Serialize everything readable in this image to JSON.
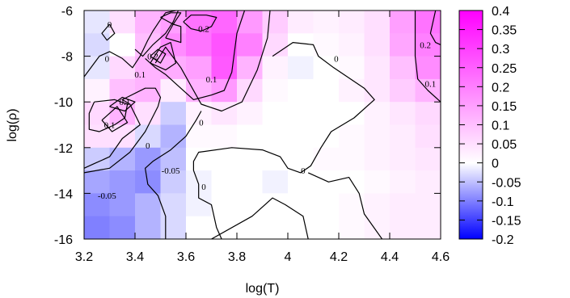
{
  "chart_data": {
    "type": "heatmap",
    "title": "",
    "xlabel": "log(T)",
    "ylabel": "log(ρ)",
    "xlim": [
      3.2,
      4.6
    ],
    "ylim": [
      -16,
      -6
    ],
    "x_ticks": [
      "3.2",
      "3.4",
      "3.6",
      "3.8",
      "4",
      "4.2",
      "4.4",
      "4.6"
    ],
    "y_ticks": [
      "-16",
      "-14",
      "-12",
      "-10",
      "-8",
      "-6"
    ],
    "grid": false,
    "colorbar": {
      "range": [
        -0.2,
        0.4
      ],
      "ticks": [
        "0.4",
        "0.35",
        "0.3",
        "0.25",
        "0.2",
        "0.15",
        "0.1",
        "0.05",
        "0",
        "-0.05",
        "-0.1",
        "-0.15",
        "-0.2"
      ],
      "colors": {
        "low": "#0000ff",
        "mid": "#ffffff",
        "high": "#ff00ff"
      }
    },
    "x": [
      3.25,
      3.35,
      3.45,
      3.55,
      3.65,
      3.75,
      3.85,
      3.95,
      4.05,
      4.15,
      4.25,
      4.35,
      4.45,
      4.55
    ],
    "y": [
      -6.5,
      -7.5,
      -8.5,
      -9.5,
      -10.5,
      -11.5,
      -12.5,
      -13.5,
      -14.5,
      -15.5
    ],
    "z": [
      [
        -0.02,
        0.05,
        0.12,
        0.15,
        0.22,
        0.24,
        0.16,
        0.08,
        0.03,
        0.02,
        0.03,
        0.05,
        0.15,
        0.22
      ],
      [
        -0.03,
        0.0,
        0.1,
        0.18,
        0.22,
        0.27,
        0.2,
        0.06,
        0.0,
        0.01,
        0.02,
        0.05,
        0.14,
        0.2
      ],
      [
        -0.02,
        0.06,
        0.12,
        0.13,
        0.15,
        0.26,
        0.12,
        0.02,
        -0.01,
        0.0,
        0.01,
        0.04,
        0.1,
        0.18
      ],
      [
        0.02,
        0.1,
        0.12,
        0.03,
        0.12,
        0.16,
        0.06,
        0.01,
        0.0,
        0.0,
        0.02,
        0.04,
        0.08,
        0.12
      ],
      [
        0.06,
        0.12,
        0.05,
        -0.04,
        0.02,
        0.04,
        0.02,
        0.0,
        0.0,
        0.0,
        0.0,
        0.02,
        0.04,
        0.06
      ],
      [
        0.05,
        0.05,
        -0.03,
        -0.06,
        0.01,
        0.01,
        0.0,
        0.0,
        0.0,
        0.0,
        0.01,
        0.02,
        0.03,
        0.05
      ],
      [
        -0.04,
        -0.06,
        -0.08,
        -0.05,
        0.0,
        0.0,
        0.0,
        0.0,
        0.0,
        0.01,
        0.01,
        0.02,
        0.03,
        0.04
      ],
      [
        -0.07,
        -0.08,
        -0.09,
        -0.04,
        -0.01,
        0.0,
        0.0,
        -0.01,
        0.0,
        0.0,
        0.0,
        0.01,
        0.02,
        0.03
      ],
      [
        -0.09,
        -0.08,
        -0.06,
        -0.03,
        -0.01,
        0.0,
        0.0,
        0.0,
        0.0,
        0.0,
        0.01,
        0.02,
        0.03,
        0.03
      ],
      [
        -0.1,
        -0.09,
        -0.06,
        -0.03,
        0.0,
        0.0,
        0.0,
        0.0,
        0.0,
        0.0,
        0.01,
        0.02,
        0.03,
        0.03
      ]
    ],
    "contours": [
      {
        "level": "0",
        "points": [
          [
            3.24,
            -10.0
          ],
          [
            3.32,
            -9.9
          ],
          [
            3.37,
            -10.1
          ],
          [
            3.36,
            -10.7
          ],
          [
            3.32,
            -11.0
          ],
          [
            3.26,
            -11.3
          ],
          [
            3.22,
            -11.2
          ],
          [
            3.22,
            -10.5
          ],
          [
            3.24,
            -10.0
          ]
        ]
      },
      {
        "level": "0",
        "points": [
          [
            3.2,
            -13.1
          ],
          [
            3.3,
            -12.9
          ],
          [
            3.38,
            -12.2
          ],
          [
            3.44,
            -11.3
          ],
          [
            3.49,
            -10.2
          ],
          [
            3.5,
            -9.8
          ],
          [
            3.48,
            -9.4
          ],
          [
            3.44,
            -9.4
          ],
          [
            3.35,
            -9.9
          ],
          [
            3.38,
            -10.1
          ],
          [
            3.42,
            -11.0
          ],
          [
            3.35,
            -11.6
          ],
          [
            3.3,
            -12.4
          ],
          [
            3.24,
            -12.7
          ],
          [
            3.2,
            -12.9
          ]
        ]
      },
      {
        "level": "0",
        "points": [
          [
            3.2,
            -8.9
          ],
          [
            3.26,
            -8.0
          ],
          [
            3.3,
            -7.8
          ],
          [
            3.35,
            -8.1
          ],
          [
            3.39,
            -8.5
          ],
          [
            3.42,
            -8.0
          ],
          [
            3.45,
            -7.3
          ],
          [
            3.47,
            -6.9
          ],
          [
            3.5,
            -6.4
          ],
          [
            3.52,
            -6.1
          ],
          [
            3.56,
            -6.0
          ]
        ]
      },
      {
        "level": "0",
        "points": [
          [
            3.48,
            -8.3
          ],
          [
            3.52,
            -7.6
          ],
          [
            3.58,
            -8.5
          ],
          [
            3.62,
            -9.3
          ],
          [
            3.66,
            -10.1
          ],
          [
            3.74,
            -10.4
          ],
          [
            3.82,
            -10.0
          ],
          [
            3.88,
            -8.6
          ],
          [
            3.92,
            -7.2
          ],
          [
            3.93,
            -6.0
          ]
        ]
      },
      {
        "level": "0",
        "points": [
          [
            3.52,
            -16.0
          ],
          [
            3.52,
            -15.0
          ],
          [
            3.49,
            -14.1
          ],
          [
            3.45,
            -13.6
          ],
          [
            3.44,
            -12.9
          ],
          [
            3.47,
            -12.6
          ],
          [
            3.54,
            -12.1
          ],
          [
            3.6,
            -11.5
          ],
          [
            3.64,
            -10.8
          ],
          [
            3.66,
            -10.4
          ]
        ]
      },
      {
        "level": "0",
        "points": [
          [
            3.94,
            -8.0
          ],
          [
            4.02,
            -7.4
          ],
          [
            4.1,
            -7.5
          ],
          [
            4.12,
            -8.0
          ],
          [
            4.18,
            -8.5
          ],
          [
            4.3,
            -9.4
          ],
          [
            4.34,
            -9.9
          ],
          [
            4.26,
            -10.7
          ],
          [
            4.17,
            -11.3
          ],
          [
            4.13,
            -12.0
          ],
          [
            4.09,
            -12.8
          ],
          [
            4.05,
            -13.1
          ],
          [
            4.0,
            -12.9
          ],
          [
            3.97,
            -12.4
          ],
          [
            3.9,
            -12.1
          ],
          [
            3.78,
            -12.0
          ],
          [
            3.65,
            -12.2
          ],
          [
            3.63,
            -12.6
          ],
          [
            3.63,
            -13.0
          ],
          [
            3.65,
            -13.6
          ],
          [
            3.65,
            -14.2
          ],
          [
            3.7,
            -14.5
          ],
          [
            3.72,
            -15.5
          ],
          [
            3.74,
            -16.0
          ]
        ]
      },
      {
        "level": "0",
        "points": [
          [
            3.7,
            -16.0
          ],
          [
            3.86,
            -15.0
          ],
          [
            3.94,
            -14.2
          ],
          [
            3.99,
            -14.5
          ],
          [
            4.06,
            -15.0
          ],
          [
            4.08,
            -16.0
          ]
        ]
      },
      {
        "level": "0",
        "points": [
          [
            4.08,
            -13.1
          ],
          [
            4.16,
            -13.5
          ],
          [
            4.24,
            -13.3
          ],
          [
            4.28,
            -14.0
          ],
          [
            4.3,
            -14.9
          ],
          [
            4.37,
            -16.0
          ]
        ]
      },
      {
        "level": "0",
        "points": [
          [
            3.52,
            -7.2
          ],
          [
            3.58,
            -7.4
          ],
          [
            3.58,
            -6.7
          ],
          [
            3.55,
            -6.6
          ],
          [
            3.52,
            -7.2
          ]
        ]
      },
      {
        "level": "0.1",
        "points": [
          [
            3.4,
            -7.7
          ],
          [
            3.43,
            -8.0
          ],
          [
            3.47,
            -7.5
          ],
          [
            3.52,
            -7.0
          ],
          [
            3.55,
            -6.5
          ],
          [
            3.57,
            -6.0
          ]
        ]
      },
      {
        "level": "0.1",
        "points": [
          [
            3.44,
            -8.1
          ],
          [
            3.48,
            -8.5
          ],
          [
            3.52,
            -8.8
          ],
          [
            3.57,
            -9.3
          ],
          [
            3.63,
            -9.9
          ],
          [
            3.7,
            -9.7
          ],
          [
            3.75,
            -9.5
          ],
          [
            3.78,
            -8.7
          ],
          [
            3.8,
            -7.0
          ],
          [
            3.83,
            -6.0
          ]
        ]
      },
      {
        "level": "0.1",
        "points": [
          [
            3.3,
            -10.2
          ],
          [
            3.35,
            -9.8
          ],
          [
            3.4,
            -10.0
          ],
          [
            3.36,
            -10.4
          ],
          [
            3.3,
            -10.2
          ]
        ]
      },
      {
        "level": "0.1",
        "points": [
          [
            3.27,
            -10.8
          ],
          [
            3.33,
            -10.2
          ],
          [
            3.37,
            -10.9
          ],
          [
            3.31,
            -11.3
          ],
          [
            3.27,
            -10.8
          ]
        ]
      },
      {
        "level": "0.1",
        "points": [
          [
            3.46,
            -8.0
          ],
          [
            3.49,
            -7.7
          ],
          [
            3.52,
            -7.9
          ],
          [
            3.5,
            -8.3
          ],
          [
            3.46,
            -8.0
          ]
        ]
      },
      {
        "level": "0.1",
        "points": [
          [
            3.46,
            -8.3
          ],
          [
            3.5,
            -7.6
          ],
          [
            3.54,
            -7.4
          ],
          [
            3.56,
            -8.3
          ],
          [
            3.52,
            -8.6
          ],
          [
            3.46,
            -8.3
          ]
        ]
      },
      {
        "level": "0.1",
        "points": [
          [
            3.5,
            -6.3
          ],
          [
            3.54,
            -6.1
          ],
          [
            3.58,
            -6.1
          ],
          [
            3.55,
            -6.6
          ],
          [
            3.5,
            -6.3
          ]
        ]
      },
      {
        "level": "0.1",
        "points": [
          [
            3.3,
            -6.6
          ],
          [
            3.32,
            -7.0
          ],
          [
            3.29,
            -7.3
          ],
          [
            3.27,
            -7.0
          ],
          [
            3.3,
            -6.6
          ]
        ]
      },
      {
        "level": "0.1",
        "points": [
          [
            4.5,
            -6.0
          ],
          [
            4.5,
            -7.0
          ],
          [
            4.5,
            -8.0
          ],
          [
            4.51,
            -9.0
          ],
          [
            4.55,
            -9.5
          ],
          [
            4.6,
            -10.0
          ]
        ]
      },
      {
        "level": "0.2",
        "points": [
          [
            4.58,
            -6.0
          ],
          [
            4.56,
            -7.0
          ],
          [
            4.58,
            -7.4
          ],
          [
            4.6,
            -7.5
          ]
        ]
      },
      {
        "level": "0.2",
        "points": [
          [
            3.59,
            -6.5
          ],
          [
            3.62,
            -6.8
          ],
          [
            3.66,
            -6.9
          ],
          [
            3.7,
            -6.7
          ],
          [
            3.72,
            -6.3
          ],
          [
            3.68,
            -6.2
          ],
          [
            3.62,
            -6.2
          ],
          [
            3.59,
            -6.5
          ]
        ]
      }
    ],
    "contour_labels": [
      {
        "text": "0",
        "x": 3.3,
        "y": -6.6
      },
      {
        "text": "0",
        "x": 3.29,
        "y": -8.1
      },
      {
        "text": "0.2",
        "x": 3.47,
        "y": -8.0
      },
      {
        "text": "0.1",
        "x": 3.42,
        "y": -8.8
      },
      {
        "text": "0.2",
        "x": 3.67,
        "y": -6.8
      },
      {
        "text": "0.1",
        "x": 3.7,
        "y": -9.0
      },
      {
        "text": "0.1",
        "x": 3.36,
        "y": -10.0
      },
      {
        "text": "0.1",
        "x": 3.3,
        "y": -11.0
      },
      {
        "text": "0",
        "x": 3.66,
        "y": -10.9
      },
      {
        "text": "0",
        "x": 3.45,
        "y": -11.9
      },
      {
        "text": "-0.05",
        "x": 3.54,
        "y": -13.0
      },
      {
        "text": "-0.05",
        "x": 3.29,
        "y": -14.1
      },
      {
        "text": "0",
        "x": 3.67,
        "y": -13.7
      },
      {
        "text": "0",
        "x": 4.06,
        "y": -13.0
      },
      {
        "text": "0",
        "x": 4.19,
        "y": -8.1
      },
      {
        "text": "0.2",
        "x": 4.54,
        "y": -7.5
      },
      {
        "text": "0.1",
        "x": 4.56,
        "y": -9.2
      }
    ]
  }
}
